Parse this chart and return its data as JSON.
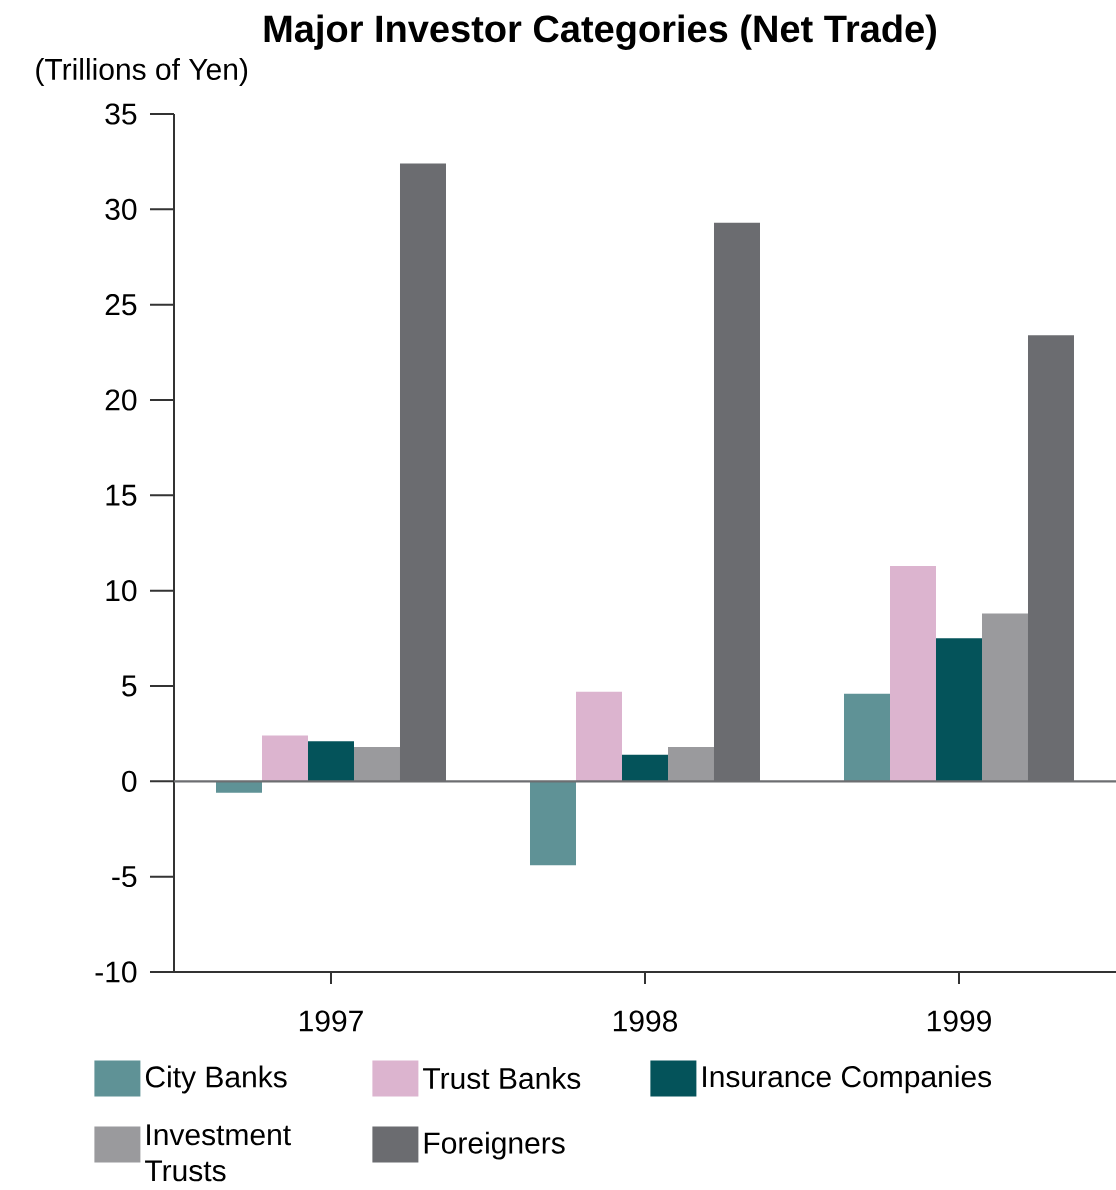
{
  "chart_data": {
    "type": "bar",
    "title": "Major Investor Categories (Net Trade)",
    "ylabel": "(Trillions of Yen)",
    "categories": [
      "1997",
      "1998",
      "1999"
    ],
    "series": [
      {
        "name": "City Banks",
        "color": "#5f9296",
        "values": [
          -0.6,
          -4.4,
          4.6
        ]
      },
      {
        "name": "Trust Banks",
        "color": "#dcb4cf",
        "values": [
          2.4,
          4.7,
          11.3
        ]
      },
      {
        "name": "Insurance Companies",
        "color": "#04535a",
        "values": [
          2.1,
          1.4,
          7.5
        ]
      },
      {
        "name": "Investment Trusts",
        "color": "#9a9a9d",
        "values": [
          1.8,
          1.8,
          8.8
        ]
      },
      {
        "name": "Foreigners",
        "color": "#6b6c70",
        "values": [
          32.4,
          29.3,
          23.4
        ]
      }
    ],
    "ylim": [
      -10,
      35
    ],
    "yticks": [
      -10,
      -5,
      0,
      5,
      10,
      15,
      20,
      25,
      30,
      35
    ],
    "legend": "bottom",
    "ref_lines": [
      {
        "axis": "y",
        "value": 0,
        "color": "#6d6e71"
      }
    ]
  }
}
